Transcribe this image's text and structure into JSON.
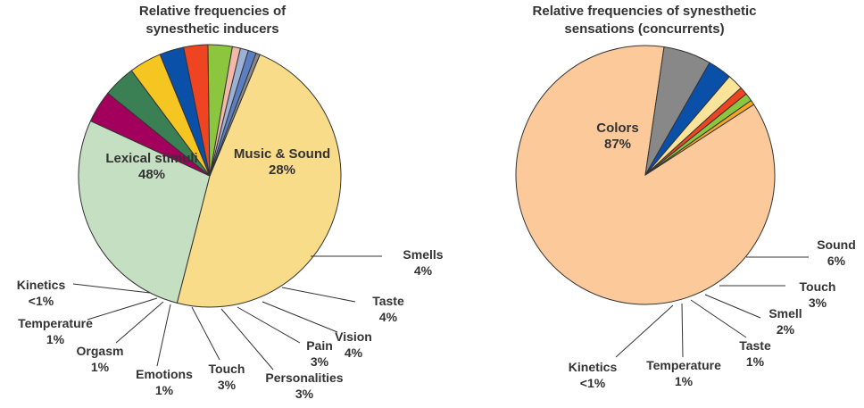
{
  "chart_data": [
    {
      "type": "pie",
      "title_lines": [
        "Relative frequencies of",
        "synesthetic inducers"
      ],
      "slices": [
        {
          "label": "Lexical stimuli",
          "value_text": "48%",
          "value": 48,
          "color": "#f9dc8a"
        },
        {
          "label": "Music & Sound",
          "value_text": "28%",
          "value": 28,
          "color": "#c5dfc3"
        },
        {
          "label": "Smells",
          "value_text": "4%",
          "value": 4,
          "color": "#a3005e"
        },
        {
          "label": "Taste",
          "value_text": "4%",
          "value": 4,
          "color": "#3b7f55"
        },
        {
          "label": "Vision",
          "value_text": "4%",
          "value": 4,
          "color": "#f5c521"
        },
        {
          "label": "Pain",
          "value_text": "3%",
          "value": 3,
          "color": "#0a4fa8"
        },
        {
          "label": "Personalities",
          "value_text": "3%",
          "value": 3,
          "color": "#ee4422"
        },
        {
          "label": "Touch",
          "value_text": "3%",
          "value": 3,
          "color": "#8cc63f"
        },
        {
          "label": "Emotions",
          "value_text": "1%",
          "value": 1,
          "color": "#f4b8a8"
        },
        {
          "label": "Orgasm",
          "value_text": "1%",
          "value": 1,
          "color": "#9db0d6"
        },
        {
          "label": "Temperature",
          "value_text": "1%",
          "value": 1,
          "color": "#5c7fc4"
        },
        {
          "label": "Kinetics",
          "value_text": "<1%",
          "value": 0.5,
          "color": "#888888"
        }
      ]
    },
    {
      "type": "pie",
      "title_lines": [
        "Relative frequencies of synesthetic",
        "sensations (concurrents)"
      ],
      "slices": [
        {
          "label": "Colors",
          "value_text": "87%",
          "value": 87,
          "color": "#fbc99a"
        },
        {
          "label": "Sound",
          "value_text": "6%",
          "value": 6,
          "color": "#888888"
        },
        {
          "label": "Touch",
          "value_text": "3%",
          "value": 3,
          "color": "#0a4fa8"
        },
        {
          "label": "Smell",
          "value_text": "2%",
          "value": 2,
          "color": "#fbe39a"
        },
        {
          "label": "Taste",
          "value_text": "1%",
          "value": 1,
          "color": "#ee4422"
        },
        {
          "label": "Temperature",
          "value_text": "1%",
          "value": 1,
          "color": "#8cc63f"
        },
        {
          "label": "Kinetics",
          "value_text": "<1%",
          "value": 0.6,
          "color": "#f5a623"
        }
      ]
    }
  ]
}
